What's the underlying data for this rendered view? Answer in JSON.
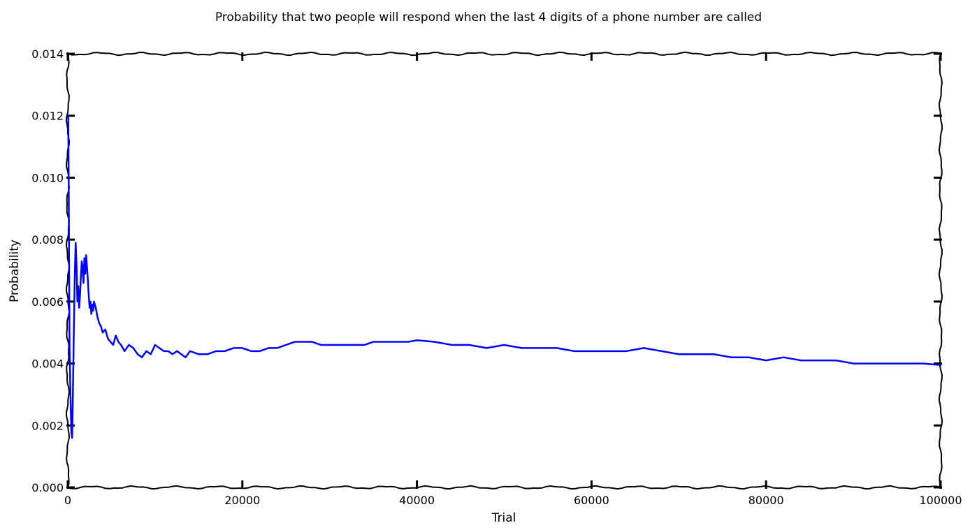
{
  "chart_data": {
    "type": "line",
    "title": "Probability that two people will respond when the last 4 digits of a phone number are called",
    "xlabel": "Trial",
    "ylabel": "Probability",
    "xlim": [
      0,
      100000
    ],
    "ylim": [
      0.0,
      0.014
    ],
    "x_ticks": [
      "0",
      "20000",
      "40000",
      "60000",
      "80000",
      "100000"
    ],
    "y_ticks": [
      "0.000",
      "0.002",
      "0.004",
      "0.006",
      "0.008",
      "0.010",
      "0.012",
      "0.014"
    ],
    "grid": false,
    "legend": "none",
    "series": [
      {
        "color": "#0000ff",
        "x": [
          50,
          100,
          200,
          300,
          400,
          500,
          600,
          700,
          800,
          900,
          1000,
          1100,
          1200,
          1300,
          1400,
          1500,
          1600,
          1700,
          1800,
          1900,
          2000,
          2100,
          2200,
          2300,
          2400,
          2500,
          2600,
          2700,
          2800,
          2900,
          3000,
          3200,
          3400,
          3600,
          3800,
          4000,
          4300,
          4600,
          4900,
          5200,
          5500,
          5800,
          6100,
          6500,
          7000,
          7500,
          8000,
          8500,
          9000,
          9500,
          10000,
          10500,
          11000,
          11500,
          12000,
          12500,
          13000,
          13500,
          14000,
          15000,
          16000,
          17000,
          18000,
          19000,
          20000,
          21000,
          22000,
          23000,
          24000,
          25000,
          26000,
          27000,
          28000,
          29000,
          30000,
          31000,
          32000,
          33000,
          34000,
          35000,
          36000,
          37000,
          38000,
          39000,
          40000,
          42000,
          44000,
          46000,
          48000,
          50000,
          52000,
          54000,
          56000,
          58000,
          60000,
          62000,
          64000,
          66000,
          68000,
          70000,
          72000,
          74000,
          76000,
          78000,
          80000,
          82000,
          84000,
          86000,
          88000,
          90000,
          92000,
          94000,
          96000,
          98000,
          100000
        ],
        "y": [
          0.012,
          0.01,
          0.0045,
          0.0031,
          0.0018,
          0.0016,
          0.0033,
          0.0052,
          0.0068,
          0.0079,
          0.0072,
          0.006,
          0.0065,
          0.0058,
          0.0062,
          0.0068,
          0.0073,
          0.0071,
          0.0066,
          0.0074,
          0.0069,
          0.0075,
          0.0071,
          0.0067,
          0.0062,
          0.0058,
          0.006,
          0.0056,
          0.0059,
          0.0057,
          0.006,
          0.0058,
          0.0055,
          0.0053,
          0.0052,
          0.005,
          0.0051,
          0.0048,
          0.0047,
          0.0046,
          0.0049,
          0.0047,
          0.0046,
          0.0044,
          0.0046,
          0.0045,
          0.0043,
          0.0042,
          0.0044,
          0.0043,
          0.0046,
          0.0045,
          0.0044,
          0.0044,
          0.0043,
          0.0044,
          0.0043,
          0.0042,
          0.0044,
          0.0043,
          0.0043,
          0.0044,
          0.0044,
          0.0045,
          0.0045,
          0.0044,
          0.0044,
          0.0045,
          0.0045,
          0.0046,
          0.0047,
          0.0047,
          0.0047,
          0.0046,
          0.0046,
          0.0046,
          0.0046,
          0.0046,
          0.0046,
          0.0047,
          0.0047,
          0.0047,
          0.0047,
          0.0047,
          0.00475,
          0.0047,
          0.0046,
          0.0046,
          0.0045,
          0.0046,
          0.0045,
          0.0045,
          0.0045,
          0.0044,
          0.0044,
          0.0044,
          0.0044,
          0.0045,
          0.0044,
          0.0043,
          0.0043,
          0.0043,
          0.0042,
          0.0042,
          0.0041,
          0.0042,
          0.0041,
          0.0041,
          0.0041,
          0.004,
          0.004,
          0.004,
          0.004,
          0.004,
          0.00395
        ]
      }
    ]
  }
}
